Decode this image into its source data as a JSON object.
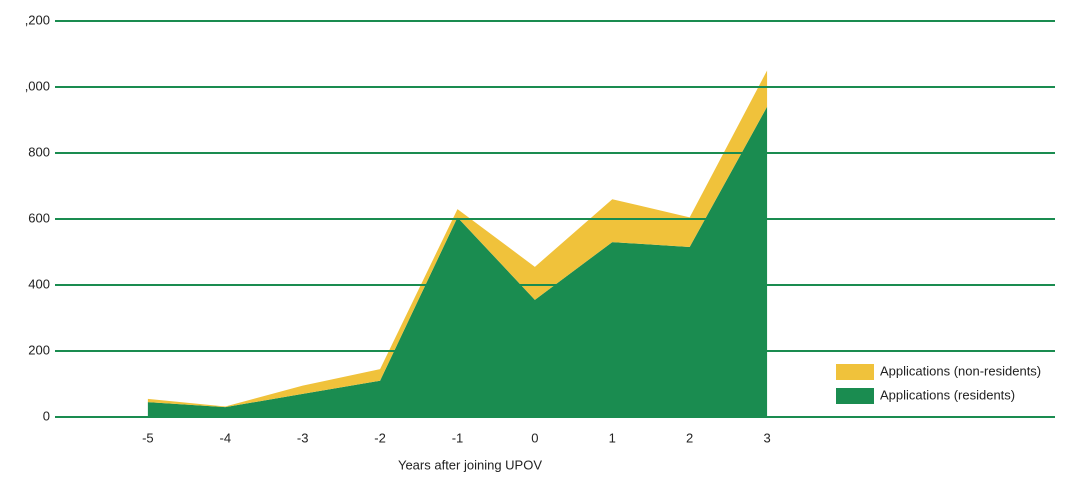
{
  "chart_data": {
    "type": "area",
    "stacked": true,
    "x_label": "Years after joining UPOV",
    "x": [
      -5,
      -4,
      -3,
      -2,
      -1,
      0,
      1,
      2,
      3
    ],
    "xlim": [
      -6.2,
      6.72
    ],
    "xticks": [
      -5,
      -4,
      -3,
      -2,
      -1,
      0,
      1,
      2,
      3
    ],
    "ylim": [
      0,
      1200
    ],
    "yticks": [
      0,
      200,
      400,
      600,
      800,
      {
        "value": 1000,
        "label": ",000"
      },
      {
        "value": 1200,
        "label": ",200"
      }
    ],
    "grid": true,
    "grid_color": "#1a8c50",
    "legend": "lower right",
    "series": [
      {
        "name": "Applications (residents)",
        "color": "#1a8c50",
        "values": [
          45,
          30,
          70,
          110,
          605,
          355,
          530,
          515,
          940
        ]
      },
      {
        "name": "Applications (non-residents)",
        "color": "#f0c23b",
        "values": [
          10,
          2,
          25,
          35,
          25,
          100,
          130,
          90,
          110
        ]
      }
    ]
  }
}
